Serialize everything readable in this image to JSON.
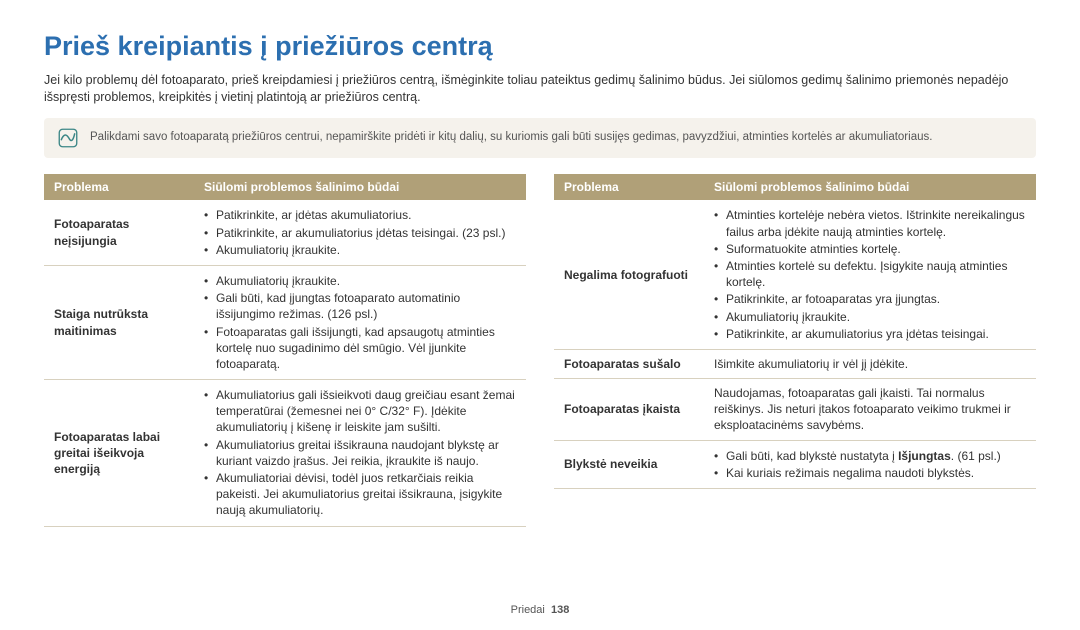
{
  "title": "Prieš kreipiantis į priežiūros centrą",
  "intro": "Jei kilo problemų dėl fotoaparato, prieš kreipdamiesi į priežiūros centrą, išmėginkite toliau pateiktus gedimų šalinimo būdus. Jei siūlomos gedimų šalinimo priemonės nepadėjo išspręsti problemos, kreipkitės į vietinį platintoją ar priežiūros centrą.",
  "note": "Palikdami savo fotoaparatą priežiūros centrui, nepamirškite pridėti ir kitų dalių, su kuriomis gali būti susijęs gedimas, pavyzdžiui, atminties kortelės ar akumuliatoriaus.",
  "colors": {
    "title": "#2c6fb0",
    "header_bg": "#b0a078",
    "header_fg": "#ffffff",
    "note_bg": "#f5f2ec",
    "row_border": "#d8d1bf",
    "icon_stroke": "#3b8686"
  },
  "table_headers": {
    "problem": "Problema",
    "solution": "Siūlomi problemos šalinimo būdai"
  },
  "left_rows": [
    {
      "problem": "Fotoaparatas neįsijungia",
      "items": [
        "Patikrinkite, ar įdėtas akumuliatorius.",
        "Patikrinkite, ar akumuliatorius įdėtas teisingai. (23 psl.)",
        "Akumuliatorių įkraukite."
      ]
    },
    {
      "problem": "Staiga nutrūksta maitinimas",
      "items": [
        "Akumuliatorių įkraukite.",
        "Gali būti, kad įjungtas fotoaparato automatinio išsijungimo režimas. (126 psl.)",
        "Fotoaparatas gali išsijungti, kad apsaugotų atminties kortelę nuo sugadinimo dėl smūgio. Vėl įjunkite fotoaparatą."
      ]
    },
    {
      "problem": "Fotoaparatas labai greitai išeikvoja energiją",
      "items": [
        "Akumuliatorius gali išsieikvoti daug greičiau esant žemai temperatūrai (žemesnei nei 0° C/32° F). Įdėkite akumuliatorių į kišenę ir leiskite jam sušilti.",
        "Akumuliatorius greitai išsikrauna naudojant blykstę ar kuriant vaizdo įrašus. Jei reikia, įkraukite iš naujo.",
        "Akumuliatoriai dėvisi, todėl juos retkarčiais reikia pakeisti. Jei akumuliatorius greitai išsikrauna, įsigykite naują akumuliatorių."
      ]
    }
  ],
  "right_rows": [
    {
      "problem": "Negalima fotografuoti",
      "items": [
        "Atminties kortelėje nebėra vietos. Ištrinkite nereikalingus failus arba įdėkite naują atminties kortelę.",
        "Suformatuokite atminties kortelę.",
        "Atminties kortelė su defektu. Įsigykite naują atminties kortelę.",
        "Patikrinkite, ar fotoaparatas yra įjungtas.",
        "Akumuliatorių įkraukite.",
        "Patikrinkite, ar akumuliatorius yra įdėtas teisingai."
      ]
    },
    {
      "problem": "Fotoaparatas sušalo",
      "plain": "Išimkite akumuliatorių ir vėl jį įdėkite."
    },
    {
      "problem": "Fotoaparatas įkaista",
      "plain": "Naudojamas, fotoaparatas gali įkaisti. Tai normalus reiškinys. Jis neturi įtakos fotoaparato veikimo trukmei ir eksploatacinėms savybėms."
    },
    {
      "problem": "Blykstė neveikia",
      "items_html": [
        "Gali būti, kad blykstė nustatyta į <b>Išjungtas</b>. (61 psl.)",
        "Kai kuriais režimais negalima naudoti blykstės."
      ]
    }
  ],
  "footer": {
    "section": "Priedai",
    "page": "138"
  }
}
